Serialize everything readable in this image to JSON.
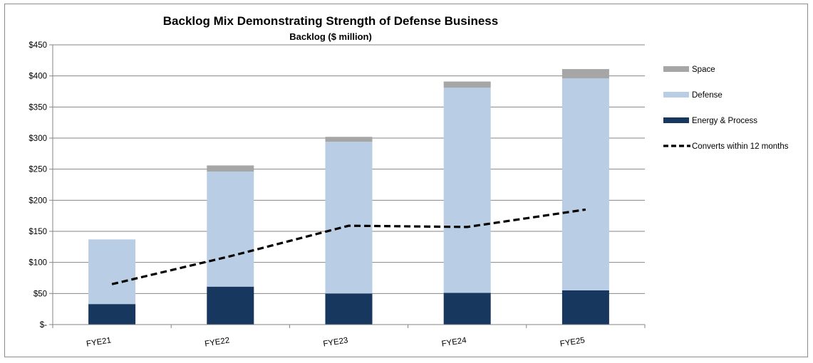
{
  "chart_data": {
    "type": "bar",
    "stacked": true,
    "title": "Backlog Mix Demonstrating Strength of Defense Business",
    "subtitle": "Backlog ($ million)",
    "categories": [
      "FYE21",
      "FYE22",
      "FYE23",
      "FYE24",
      "FYE25"
    ],
    "series": [
      {
        "name": "Energy & Process",
        "values": [
          33,
          61,
          50,
          51,
          55
        ],
        "color": "#17375e"
      },
      {
        "name": "Defense",
        "values": [
          104,
          185,
          244,
          330,
          341
        ],
        "color": "#b9cde5"
      },
      {
        "name": "Space",
        "values": [
          0,
          10,
          8,
          10,
          15
        ],
        "color": "#a6a6a6"
      }
    ],
    "line_series": {
      "name": "Converts within 12 months",
      "values": [
        65,
        110,
        159,
        157,
        185
      ],
      "color": "#000000",
      "style": "dashed"
    },
    "legend_order": [
      "Space",
      "Defense",
      "Energy & Process",
      "Converts within 12 months"
    ],
    "ylim": [
      0,
      450
    ],
    "yticks": [
      0,
      50,
      100,
      150,
      200,
      250,
      300,
      350,
      400,
      450
    ],
    "ytick_labels": [
      "$-",
      "$50",
      "$100",
      "$150",
      "$200",
      "$250",
      "$300",
      "$350",
      "$400",
      "$450"
    ],
    "legend_position": "right",
    "grid": true
  }
}
